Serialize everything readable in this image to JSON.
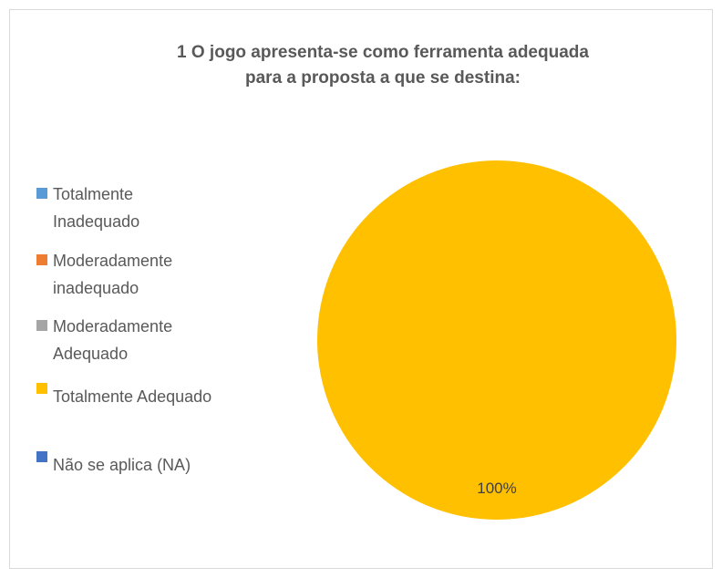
{
  "chart_data": {
    "type": "pie",
    "title": "1 O jogo apresenta-se como ferramenta adequada para a proposta a que se destina:",
    "categories": [
      "Totalmente Inadequado",
      "Moderadamente inadequado",
      "Moderadamente Adequado",
      "Totalmente Adequado",
      "Não se aplica (NA)"
    ],
    "values": [
      0,
      0,
      0,
      100,
      0
    ],
    "value_labels": [
      null,
      null,
      null,
      "100%",
      null
    ],
    "colors": [
      "#5b9bd5",
      "#ed7d31",
      "#a5a5a5",
      "#ffc000",
      "#4472c4"
    ],
    "legend": "left"
  }
}
